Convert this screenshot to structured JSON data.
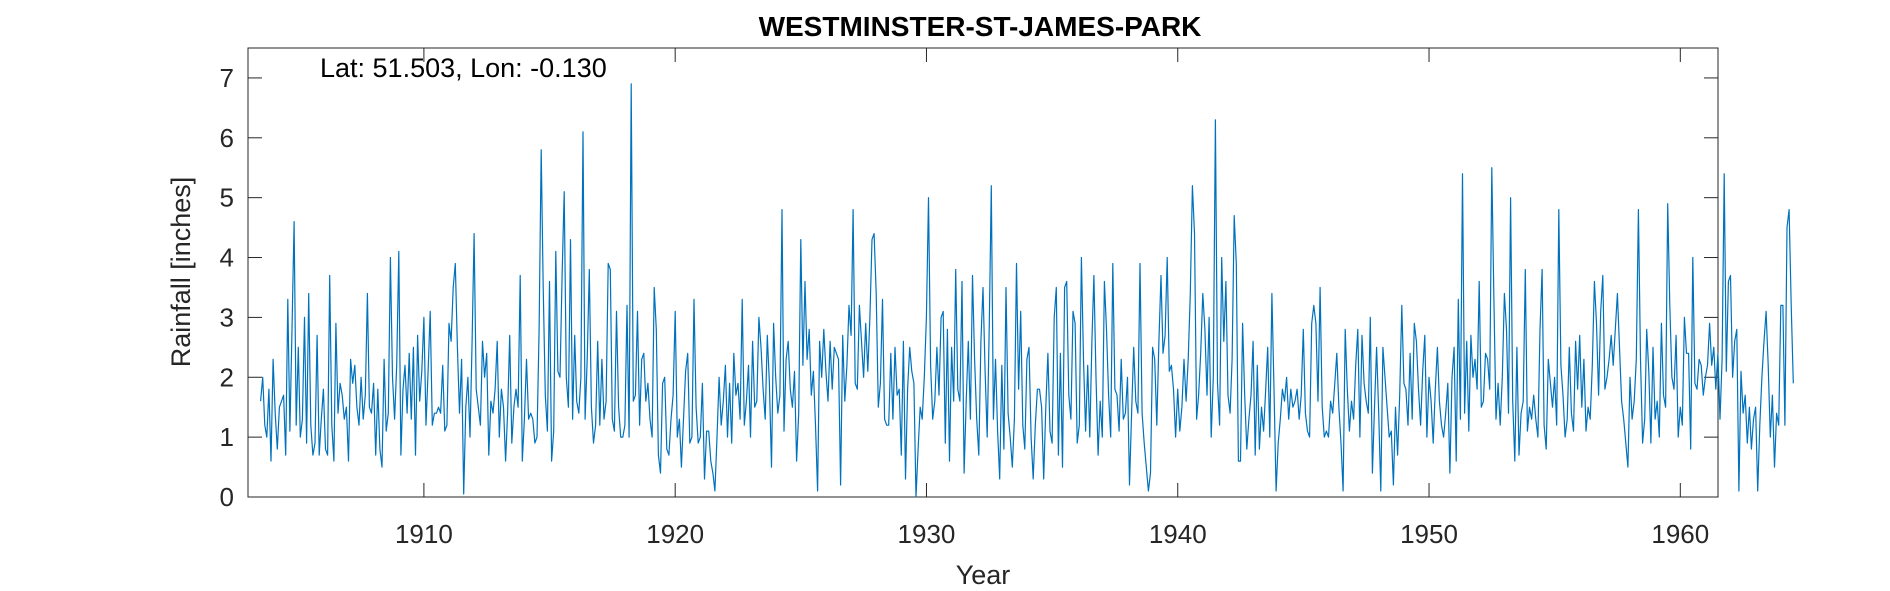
{
  "chart_data": {
    "type": "line",
    "title": "WESTMINSTER-ST-JAMES-PARK",
    "annotation": "Lat: 51.503, Lon: -0.130",
    "xlabel": "Year",
    "ylabel": "Rainfall [inches]",
    "xlim": [
      1903,
      1961.5
    ],
    "ylim": [
      0,
      7.5
    ],
    "xticks": [
      1910,
      1920,
      1930,
      1940,
      1950,
      1960
    ],
    "yticks": [
      0,
      1,
      2,
      3,
      4,
      5,
      6,
      7
    ],
    "grid": false,
    "series": [
      {
        "x_start": 1903.5,
        "step_years": 0.08333,
        "values": [
          1.6,
          2.0,
          1.2,
          1.0,
          1.8,
          0.6,
          2.3,
          1.4,
          0.8,
          1.5,
          1.6,
          1.7,
          0.7,
          3.3,
          1.1,
          2.8,
          4.6,
          1.2,
          2.5,
          1.0,
          1.3,
          3.0,
          0.9,
          3.4,
          1.2,
          0.7,
          0.9,
          2.7,
          0.7,
          1.3,
          1.8,
          0.8,
          0.7,
          3.7,
          1.2,
          0.6,
          2.9,
          1.4,
          1.9,
          1.7,
          1.3,
          1.5,
          0.6,
          2.3,
          1.9,
          2.2,
          1.5,
          1.2,
          2.0,
          1.3,
          1.7,
          3.4,
          1.5,
          1.4,
          1.9,
          0.7,
          1.8,
          0.8,
          0.5,
          2.3,
          1.1,
          1.4,
          4.0,
          2.0,
          1.3,
          2.2,
          4.1,
          0.7,
          1.8,
          2.2,
          1.4,
          2.4,
          1.3,
          2.5,
          0.7,
          2.7,
          1.6,
          2.1,
          3.0,
          1.2,
          2.1,
          3.1,
          1.2,
          1.4,
          1.4,
          1.5,
          1.4,
          2.2,
          1.1,
          1.2,
          2.9,
          2.6,
          3.5,
          3.9,
          2.5,
          1.4,
          2.3,
          0.05,
          1.5,
          2.0,
          1.0,
          2.6,
          4.4,
          1.8,
          1.5,
          1.2,
          2.6,
          2.0,
          2.4,
          0.7,
          1.6,
          1.4,
          1.8,
          2.6,
          1.0,
          1.8,
          1.5,
          0.6,
          1.4,
          2.7,
          0.9,
          1.5,
          1.8,
          1.5,
          3.7,
          0.6,
          1.3,
          2.3,
          1.3,
          1.4,
          1.3,
          0.9,
          1.0,
          2.8,
          5.8,
          3.5,
          1.7,
          1.1,
          3.6,
          0.6,
          1.1,
          4.1,
          2.1,
          2.0,
          3.7,
          5.1,
          2.0,
          1.5,
          4.3,
          1.3,
          2.7,
          1.6,
          1.4,
          2.0,
          6.1,
          1.3,
          2.3,
          3.8,
          1.5,
          0.9,
          1.2,
          2.6,
          1.2,
          2.3,
          1.3,
          1.6,
          3.9,
          3.8,
          1.3,
          1.1,
          3.1,
          1.5,
          1.0,
          1.0,
          1.2,
          3.2,
          1.0,
          6.9,
          1.6,
          1.7,
          3.1,
          1.2,
          2.3,
          2.4,
          1.6,
          1.9,
          1.3,
          1.0,
          3.5,
          2.8,
          0.7,
          0.4,
          1.9,
          2.0,
          0.8,
          0.7,
          1.3,
          1.7,
          3.1,
          1.0,
          1.3,
          0.5,
          1.3,
          2.1,
          2.4,
          0.9,
          1.0,
          3.3,
          1.5,
          0.9,
          1.0,
          1.9,
          0.3,
          1.1,
          1.1,
          0.6,
          0.4,
          0.1,
          1.0,
          2.0,
          1.2,
          1.6,
          2.2,
          1.0,
          1.9,
          0.9,
          2.4,
          1.7,
          1.9,
          1.3,
          3.3,
          1.2,
          1.6,
          2.2,
          1.0,
          2.6,
          1.5,
          1.6,
          3.0,
          2.5,
          1.8,
          1.3,
          2.7,
          1.9,
          0.5,
          2.9,
          2.0,
          1.4,
          1.7,
          4.8,
          1.1,
          2.3,
          2.6,
          1.8,
          1.5,
          2.1,
          0.6,
          1.4,
          4.3,
          2.2,
          3.6,
          2.3,
          2.8,
          1.7,
          2.1,
          1.2,
          0.1,
          2.6,
          2.0,
          2.8,
          2.1,
          1.6,
          2.6,
          1.8,
          2.5,
          2.4,
          2.3,
          0.2,
          2.7,
          1.6,
          2.2,
          3.2,
          2.7,
          4.8,
          1.9,
          1.8,
          3.2,
          2.6,
          2.0,
          2.9,
          2.1,
          3.0,
          4.3,
          4.4,
          3.4,
          1.5,
          1.9,
          3.3,
          1.3,
          1.2,
          1.2,
          2.4,
          1.3,
          2.5,
          1.7,
          1.8,
          0.7,
          2.6,
          0.3,
          1.8,
          2.5,
          2.1,
          1.9,
          0.0,
          0.8,
          1.5,
          1.3,
          2.0,
          3.0,
          5.0,
          2.2,
          1.3,
          1.6,
          2.5,
          1.7,
          3.0,
          3.1,
          0.9,
          2.8,
          0.6,
          2.5,
          1.6,
          3.8,
          1.8,
          1.6,
          3.6,
          0.4,
          1.6,
          2.6,
          1.3,
          3.7,
          2.3,
          1.3,
          0.7,
          2.6,
          3.5,
          2.1,
          1.0,
          2.9,
          5.2,
          1.3,
          2.3,
          1.1,
          0.3,
          2.2,
          0.8,
          3.5,
          1.4,
          1.0,
          0.5,
          1.3,
          3.9,
          1.8,
          3.1,
          1.2,
          0.8,
          2.3,
          2.5,
          1.0,
          0.3,
          1.2,
          1.8,
          1.8,
          1.5,
          0.3,
          1.5,
          2.4,
          1.1,
          0.9,
          3.0,
          3.5,
          0.7,
          2.4,
          0.5,
          3.5,
          3.6,
          1.7,
          1.3,
          3.1,
          2.9,
          0.9,
          1.2,
          4.0,
          2.3,
          1.1,
          2.2,
          1.0,
          2.6,
          3.7,
          2.0,
          0.7,
          1.6,
          1.0,
          3.6,
          2.8,
          1.7,
          1.0,
          3.9,
          1.8,
          1.7,
          1.1,
          2.3,
          1.3,
          1.4,
          2.0,
          0.2,
          1.4,
          2.5,
          1.6,
          1.4,
          3.9,
          1.4,
          0.9,
          0.5,
          0.1,
          0.4,
          2.5,
          2.3,
          1.2,
          2.6,
          3.7,
          2.4,
          2.7,
          4.0,
          2.1,
          2.2,
          1.8,
          1.0,
          1.8,
          1.1,
          1.5,
          2.3,
          1.6,
          2.3,
          3.4,
          5.2,
          4.4,
          1.3,
          1.7,
          2.4,
          3.4,
          2.8,
          1.7,
          3.0,
          1.0,
          2.0,
          6.3,
          1.9,
          1.2,
          4.0,
          2.6,
          3.6,
          1.7,
          1.4,
          2.3,
          4.7,
          3.9,
          0.6,
          0.6,
          2.9,
          1.7,
          0.8,
          1.3,
          1.7,
          2.6,
          0.7,
          2.2,
          0.8,
          1.5,
          1.1,
          1.8,
          2.5,
          1.0,
          3.4,
          1.8,
          0.1,
          0.9,
          1.3,
          1.8,
          1.6,
          2.0,
          1.3,
          1.8,
          1.5,
          1.6,
          1.8,
          1.3,
          1.7,
          2.8,
          1.4,
          1.1,
          1.0,
          2.9,
          3.2,
          2.9,
          1.6,
          3.5,
          1.5,
          1.0,
          1.1,
          1.0,
          1.6,
          1.4,
          1.9,
          2.4,
          1.5,
          0.9,
          0.1,
          2.8,
          1.8,
          1.1,
          1.6,
          1.3,
          2.2,
          2.8,
          1.0,
          2.7,
          1.9,
          1.6,
          1.4,
          3.0,
          0.4,
          1.5,
          2.5,
          1.4,
          0.1,
          2.5,
          2.0,
          1.5,
          1.0,
          1.1,
          0.2,
          1.5,
          0.7,
          1.7,
          3.2,
          1.9,
          1.8,
          1.2,
          2.4,
          1.3,
          2.9,
          2.6,
          1.8,
          1.2,
          2.1,
          2.7,
          1.0,
          2.0,
          1.6,
          0.9,
          1.8,
          2.5,
          1.6,
          1.2,
          1.0,
          1.4,
          1.9,
          0.4,
          2.0,
          2.5,
          0.6,
          3.3,
          1.3,
          5.4,
          1.4,
          2.6,
          1.1,
          2.7,
          2.0,
          2.3,
          1.8,
          3.6,
          1.5,
          1.6,
          2.4,
          2.3,
          1.8,
          5.5,
          3.3,
          1.3,
          1.9,
          1.2,
          2.0,
          3.4,
          2.8,
          1.4,
          5.0,
          1.6,
          0.6,
          2.5,
          0.7,
          1.4,
          1.6,
          3.8,
          1.1,
          1.5,
          1.3,
          1.7,
          1.3,
          1.0,
          2.8,
          3.8,
          1.2,
          0.8,
          2.3,
          1.9,
          1.5,
          2.0,
          1.2,
          4.8,
          2.2,
          1.7,
          1.0,
          1.3,
          2.5,
          1.4,
          1.1,
          2.6,
          1.8,
          2.7,
          1.5,
          2.3,
          1.1,
          1.5,
          1.3,
          2.2,
          3.6,
          2.9,
          1.7,
          3.1,
          3.7,
          1.8,
          2.0,
          2.3,
          2.7,
          2.2,
          2.8,
          3.4,
          2.5,
          1.6,
          1.3,
          0.9,
          0.5,
          2.0,
          1.3,
          1.6,
          2.3,
          4.8,
          2.3,
          0.9,
          1.3,
          2.8,
          2.1,
          0.9,
          2.5,
          1.3,
          1.6,
          1.0,
          2.9,
          1.7,
          1.5,
          4.9,
          3.2,
          2.0,
          1.8,
          2.7,
          1.0,
          1.5,
          1.2,
          3.0,
          2.4,
          2.4,
          0.8,
          4.0,
          1.9,
          1.8,
          2.3,
          2.2,
          1.7,
          2.0,
          2.2,
          2.9,
          2.2,
          2.5,
          1.8,
          2.4,
          1.3,
          2.3,
          5.4,
          2.1,
          3.6,
          3.7,
          2.0,
          2.6,
          2.8,
          0.1,
          2.1,
          1.4,
          1.7,
          0.9,
          1.5,
          0.8,
          1.3,
          1.5,
          0.1,
          1.2,
          2.0,
          2.6,
          3.1,
          2.2,
          1.0,
          1.7,
          0.5,
          1.4,
          1.2,
          3.2,
          3.2,
          1.2,
          4.5,
          4.8,
          3.2,
          1.9
        ]
      }
    ]
  }
}
